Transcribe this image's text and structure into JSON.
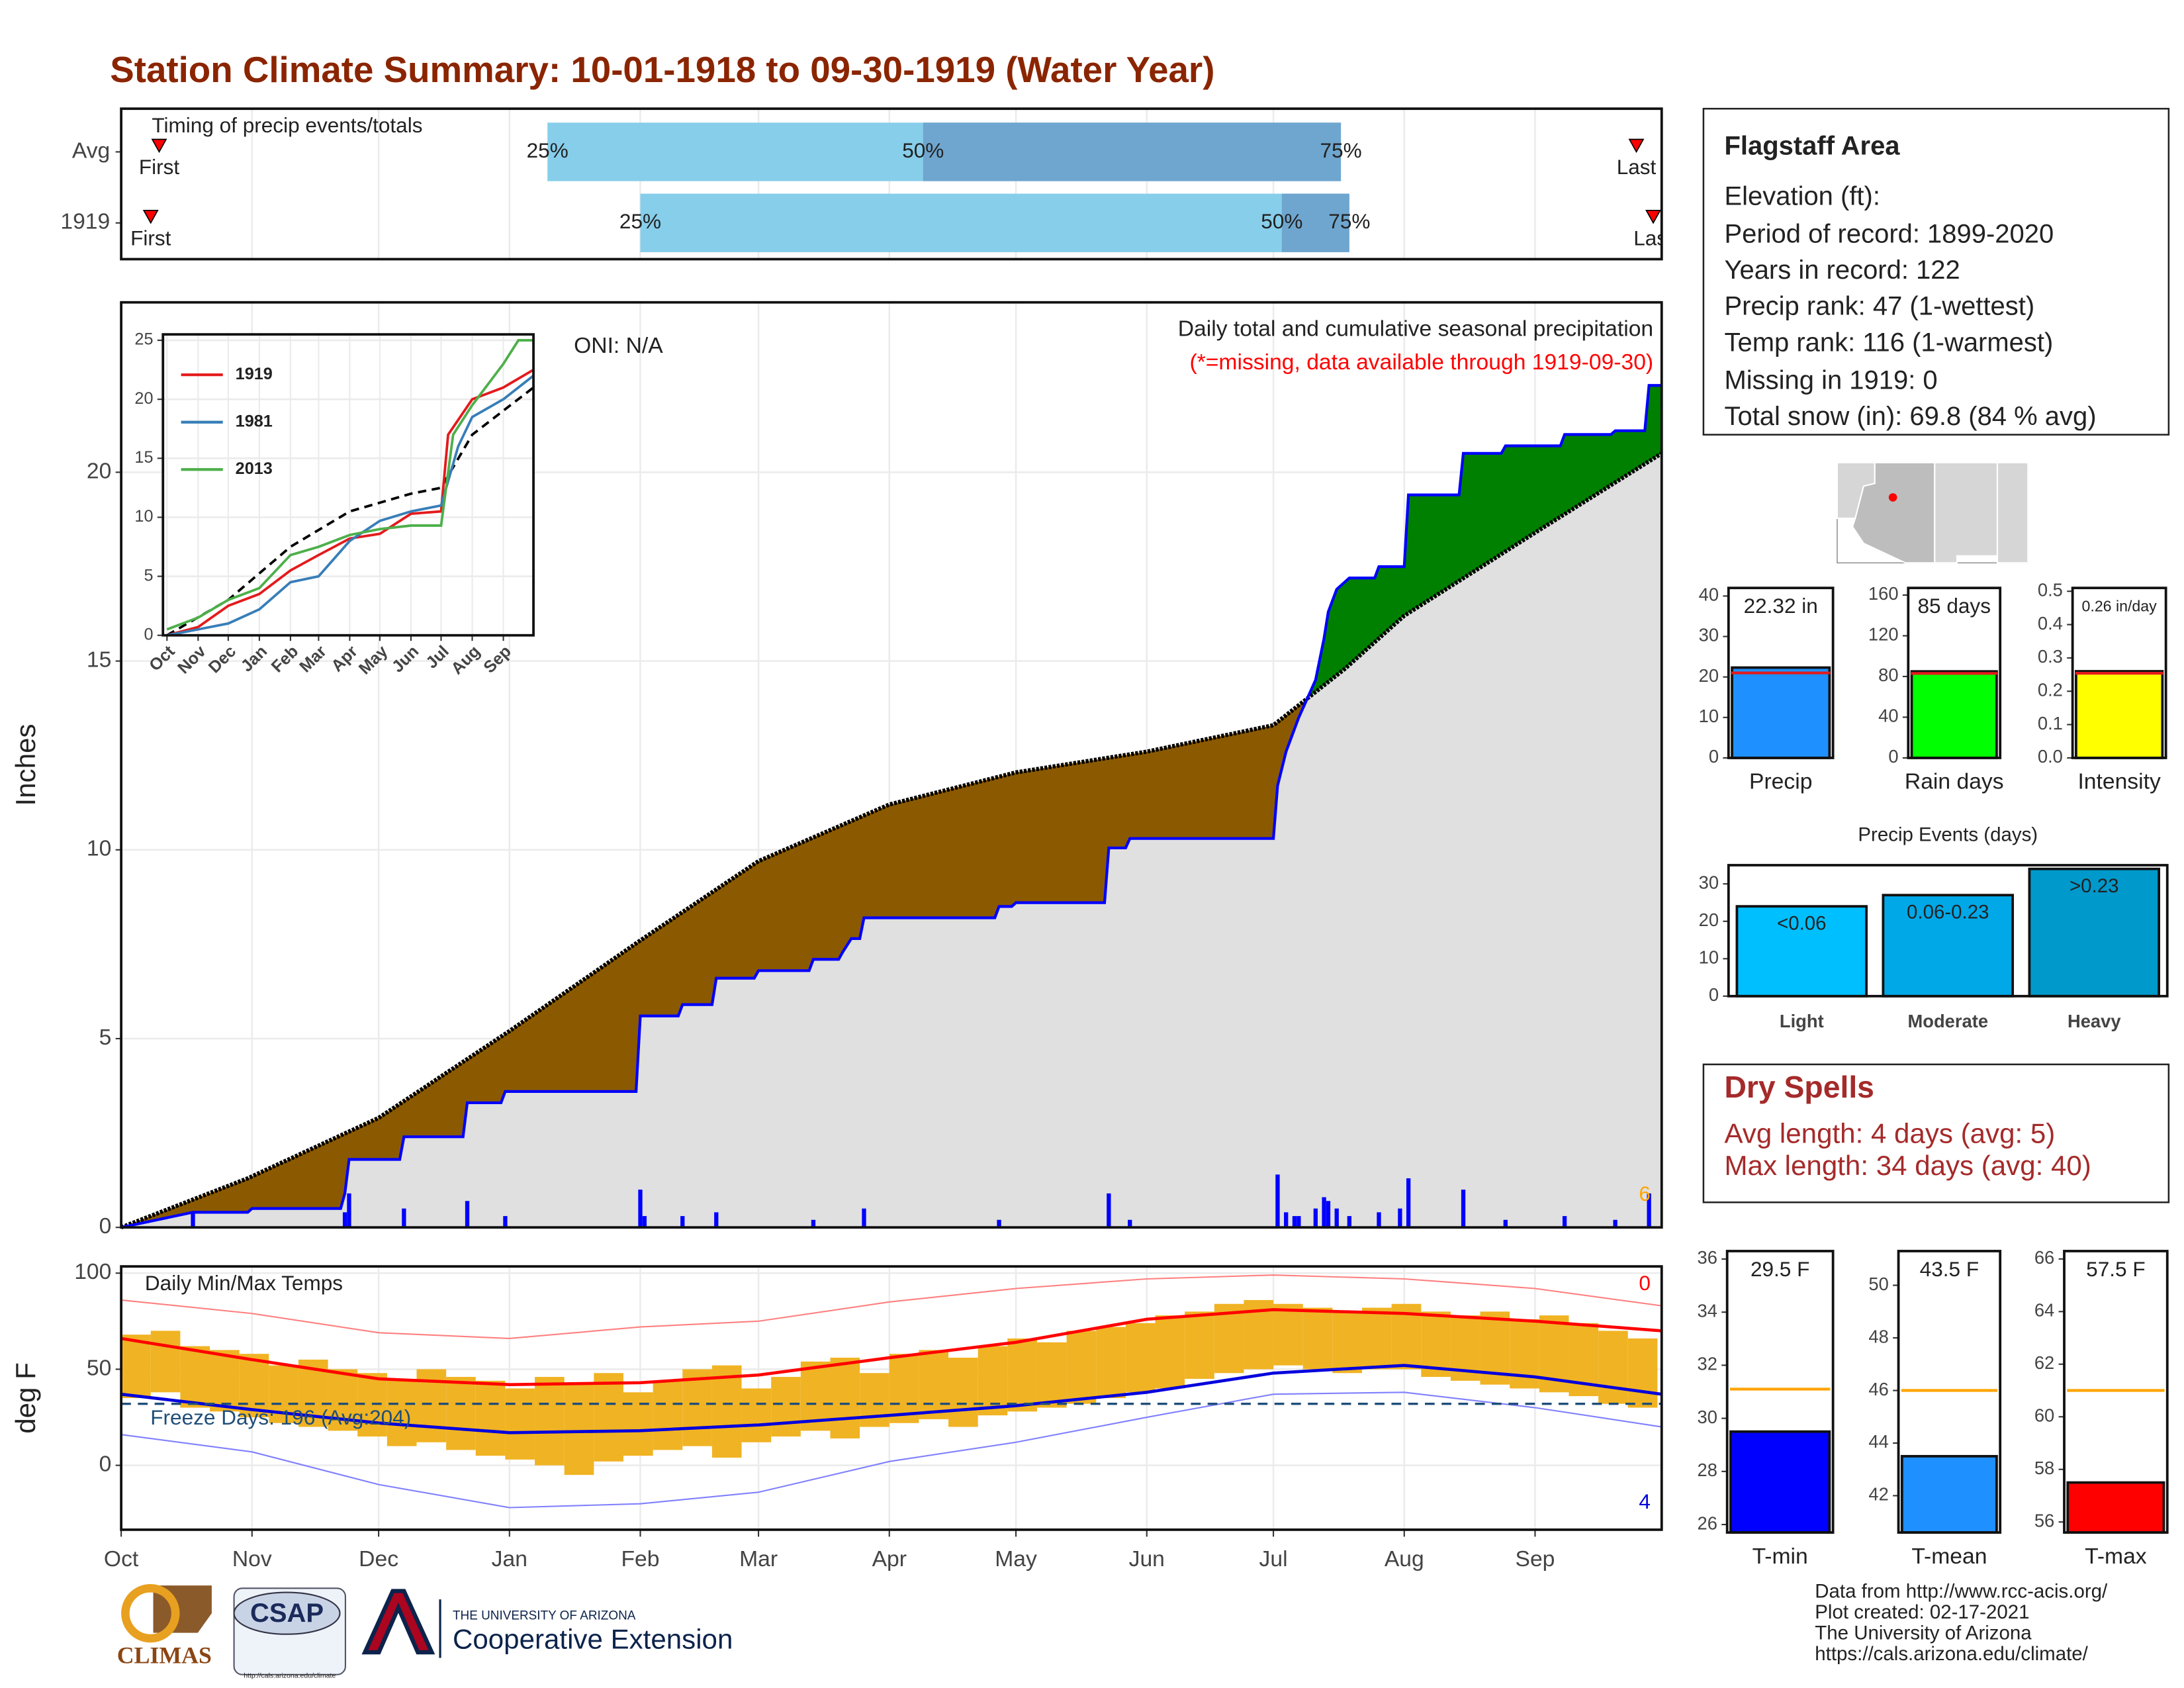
{
  "title": "Station Climate Summary: 10-01-1918 to 09-30-1919 (Water Year)",
  "info": {
    "station": "Flagstaff Area",
    "lines": [
      "Elevation (ft):",
      "Period of record: 1899-2020",
      "Years in record: 122",
      "Precip rank: 47 (1-wettest)",
      "Temp rank: 116 (1-warmest)",
      "Missing in 1919: 0",
      "Total snow (in): 69.8 (84 % avg)"
    ]
  },
  "dry_spells": {
    "title": "Dry Spells",
    "lines": [
      "Avg length: 4 days (avg: 5)",
      "Max length: 34 days (avg: 40)"
    ]
  },
  "credits": [
    "Data from http://www.rcc-acis.org/",
    "Plot created: 02-17-2021",
    "The University of Arizona",
    "https://cals.arizona.edu/climate/"
  ],
  "logos": {
    "climas": "CLIMAS",
    "csap": "CSAP",
    "csap_url": "http://cals.arizona.edu/climate",
    "university": "THE UNIVERSITY OF ARIZONA",
    "extension": "Cooperative Extension"
  },
  "chart_data": [
    {
      "type": "timing",
      "title": "Timing of precip events/totals",
      "categories": [
        "Avg",
        "1919"
      ],
      "xlim": [
        0,
        365
      ],
      "rows": [
        {
          "first": 9,
          "p25": 101,
          "p50": 190,
          "p75": 289,
          "last": 359
        },
        {
          "first": 7,
          "p25": 123,
          "p50": 275,
          "p75": 291,
          "last": 363
        }
      ],
      "marker_labels": {
        "first": "First",
        "p25": "25%",
        "p50": "50%",
        "p75": "75%",
        "last": "Last"
      },
      "light_color": "#87ceeb",
      "dark_color": "#6fa6cf",
      "marker_color": "#ff0000"
    },
    {
      "type": "area",
      "title": "Daily total and cumulative seasonal precipitation",
      "subtitle": "(*=missing, data available through 1919-09-30)",
      "annotation": "ONI: N/A",
      "ylabel": "Inches",
      "xlim": [
        0,
        365
      ],
      "ylim": [
        0,
        24.5
      ],
      "yticks": [
        0,
        5,
        10,
        15,
        20
      ],
      "grid": true,
      "cumulative": {
        "color": "#0000ff",
        "x": [
          0,
          17,
          30,
          31,
          52,
          53,
          54,
          66,
          67,
          81,
          82,
          90,
          91,
          122,
          123,
          132,
          133,
          140,
          141,
          150,
          151,
          163,
          164,
          170,
          171,
          173,
          175,
          176,
          207,
          208,
          211,
          212,
          233,
          234,
          238,
          239,
          273,
          274,
          276,
          279,
          283,
          285,
          286,
          288,
          291,
          297,
          298,
          304,
          305,
          317,
          318,
          327,
          328,
          341,
          342,
          353,
          354,
          361,
          362,
          365
        ],
        "values": [
          0,
          0.4,
          0.4,
          0.5,
          0.5,
          0.9,
          1.8,
          1.8,
          2.4,
          2.4,
          3.3,
          3.3,
          3.6,
          3.6,
          5.6,
          5.6,
          5.9,
          5.9,
          6.6,
          6.6,
          6.8,
          6.8,
          7.1,
          7.1,
          7.3,
          7.65,
          7.65,
          8.2,
          8.2,
          8.5,
          8.5,
          8.6,
          8.6,
          10.05,
          10.05,
          10.3,
          10.3,
          11.7,
          12.6,
          13.5,
          14.5,
          15.6,
          16.3,
          16.9,
          17.2,
          17.2,
          17.5,
          17.5,
          19.4,
          19.4,
          20.5,
          20.5,
          20.7,
          20.7,
          21.0,
          21.0,
          21.1,
          21.1,
          22.3,
          22.3
        ]
      },
      "average": {
        "color": "#000000",
        "x": [
          0,
          30,
          61,
          92,
          123,
          151,
          182,
          212,
          243,
          273,
          290,
          304,
          335,
          365
        ],
        "values": [
          0,
          1.3,
          2.9,
          5.2,
          7.6,
          9.7,
          11.2,
          12.05,
          12.6,
          13.3,
          14.8,
          16.2,
          18.4,
          20.5
        ]
      },
      "daily": {
        "color": "#0000ff",
        "x": [
          17,
          53,
          54,
          67,
          82,
          91,
          123,
          124,
          133,
          141,
          164,
          176,
          208,
          234,
          239,
          274,
          276,
          278,
          279,
          283,
          285,
          286,
          288,
          291,
          298,
          303,
          305,
          318,
          328,
          342,
          354,
          362
        ],
        "values": [
          0.4,
          0.4,
          0.9,
          0.5,
          0.7,
          0.3,
          1.0,
          0.3,
          0.3,
          0.4,
          0.2,
          0.5,
          0.2,
          0.9,
          0.2,
          1.4,
          0.4,
          0.3,
          0.3,
          0.5,
          0.8,
          0.7,
          0.5,
          0.3,
          0.4,
          0.5,
          1.3,
          1.0,
          0.2,
          0.3,
          0.2,
          0.9
        ]
      },
      "below_color": "#8b5a00",
      "above_color": "#008000",
      "fill_color": "#e0e0e0",
      "count_label": 6
    },
    {
      "type": "line",
      "xlim": [
        -4,
        365
      ],
      "ylim": [
        0,
        25.5
      ],
      "yticks": [
        0,
        5,
        10,
        15,
        20,
        25
      ],
      "xticks": [
        {
          "value": 0,
          "label": "Oct"
        },
        {
          "value": 31,
          "label": "Nov"
        },
        {
          "value": 61,
          "label": "Dec"
        },
        {
          "value": 92,
          "label": "Jan"
        },
        {
          "value": 123,
          "label": "Feb"
        },
        {
          "value": 151,
          "label": "Mar"
        },
        {
          "value": 182,
          "label": "Apr"
        },
        {
          "value": 212,
          "label": "May"
        },
        {
          "value": 243,
          "label": "Jun"
        },
        {
          "value": 273,
          "label": "Jul"
        },
        {
          "value": 304,
          "label": "Aug"
        },
        {
          "value": 335,
          "label": "Sep"
        }
      ],
      "series": [
        {
          "name": "1919",
          "color": "#e41a1c",
          "x": [
            0,
            31,
            61,
            92,
            123,
            151,
            182,
            212,
            243,
            273,
            280,
            304,
            335,
            365
          ],
          "values": [
            0,
            0.7,
            2.5,
            3.5,
            5.5,
            6.8,
            8.2,
            8.6,
            10.3,
            10.5,
            17,
            20,
            21,
            22.5
          ]
        },
        {
          "name": "1981",
          "color": "#377eb8",
          "x": [
            0,
            31,
            61,
            92,
            123,
            151,
            182,
            212,
            243,
            273,
            290,
            304,
            335,
            365
          ],
          "values": [
            0,
            0.5,
            1,
            2.2,
            4.5,
            5,
            8,
            9.7,
            10.5,
            11,
            16,
            18.5,
            20,
            22
          ]
        },
        {
          "name": "2013",
          "color": "#4daf4a",
          "x": [
            0,
            31,
            61,
            92,
            123,
            151,
            182,
            212,
            243,
            273,
            285,
            304,
            335,
            350,
            365
          ],
          "values": [
            0.5,
            1.5,
            3,
            4,
            6.8,
            7.5,
            8.5,
            9,
            9.3,
            9.3,
            17,
            19.5,
            23,
            25,
            25
          ]
        }
      ],
      "average": {
        "color": "#000000",
        "x": [
          0,
          61,
          123,
          182,
          243,
          273,
          304,
          365
        ],
        "values": [
          0,
          3,
          7.5,
          10.5,
          12,
          12.5,
          17,
          21
        ]
      }
    },
    {
      "type": "range",
      "title": "Daily Min/Max Temps",
      "ylabel": "deg F",
      "annotation": "Freeze Days: 196 (Avg:204)",
      "xlim": [
        0,
        365
      ],
      "ylim": [
        -33.5,
        103.5
      ],
      "yticks": [
        0,
        50,
        100
      ],
      "grid": true,
      "xticks": [
        {
          "value": 0,
          "label": "Oct"
        },
        {
          "value": 31,
          "label": "Nov"
        },
        {
          "value": 61,
          "label": "Dec"
        },
        {
          "value": 92,
          "label": "Jan"
        },
        {
          "value": 123,
          "label": "Feb"
        },
        {
          "value": 151,
          "label": "Mar"
        },
        {
          "value": 182,
          "label": "Apr"
        },
        {
          "value": 212,
          "label": "May"
        },
        {
          "value": 243,
          "label": "Jun"
        },
        {
          "value": 273,
          "label": "Jul"
        },
        {
          "value": 304,
          "label": "Aug"
        },
        {
          "value": 335,
          "label": "Sep"
        }
      ],
      "x": [
        3.5,
        10.5,
        17.5,
        24.5,
        31.5,
        38.5,
        45.5,
        52.5,
        59.5,
        66.5,
        73.5,
        80.5,
        87.5,
        94.5,
        101.5,
        108.5,
        115.5,
        122.5,
        129.5,
        136.5,
        143.5,
        150.5,
        157.5,
        164.5,
        171.5,
        178.5,
        185.5,
        192.5,
        199.5,
        206.5,
        213.5,
        220.5,
        227.5,
        234.5,
        241.5,
        248.5,
        255.5,
        262.5,
        269.5,
        276.5,
        283.5,
        290.5,
        297.5,
        304.5,
        311.5,
        318.5,
        325.5,
        332.5,
        339.5,
        346.5,
        353.5,
        360.5
      ],
      "high": [
        68,
        70,
        62,
        60,
        58,
        52,
        55,
        50,
        48,
        45,
        50,
        46,
        44,
        40,
        46,
        42,
        48,
        38,
        44,
        50,
        52,
        40,
        46,
        54,
        56,
        48,
        58,
        60,
        56,
        62,
        66,
        64,
        70,
        72,
        74,
        78,
        80,
        84,
        86,
        84,
        82,
        80,
        82,
        84,
        80,
        78,
        80,
        76,
        78,
        74,
        70,
        66
      ],
      "low": [
        35,
        38,
        30,
        28,
        25,
        22,
        20,
        18,
        15,
        10,
        12,
        8,
        5,
        3,
        0,
        -5,
        2,
        5,
        8,
        10,
        4,
        12,
        15,
        18,
        14,
        20,
        22,
        24,
        20,
        26,
        28,
        30,
        32,
        35,
        38,
        40,
        45,
        48,
        50,
        52,
        50,
        48,
        50,
        50,
        46,
        44,
        42,
        40,
        38,
        36,
        32,
        30
      ],
      "range_color": "#f0b323",
      "line_x": [
        0,
        31,
        61,
        92,
        123,
        151,
        182,
        212,
        243,
        273,
        304,
        335,
        365
      ],
      "normal_high": {
        "color": "#ff0000",
        "values": [
          66,
          55,
          45,
          42,
          43,
          47,
          56,
          64,
          76,
          81,
          79,
          75,
          70
        ]
      },
      "normal_low": {
        "color": "#0000dd",
        "values": [
          37,
          29,
          22,
          17,
          18,
          21,
          26,
          31,
          38,
          48,
          52,
          46,
          37
        ]
      },
      "record_high": {
        "color": "#ff8080",
        "values": [
          86,
          79,
          69,
          66,
          72,
          75,
          85,
          92,
          97,
          99,
          97,
          92,
          83
        ]
      },
      "record_low": {
        "color": "#8080ff",
        "values": [
          16,
          7,
          -10,
          -22,
          -20,
          -14,
          2,
          12,
          25,
          37,
          38,
          30,
          20
        ]
      },
      "freeze_line": 32,
      "freeze_color": "#1f4e79",
      "count_high": 0,
      "count_low": 4
    },
    {
      "type": "bar",
      "categories": [
        "Precip"
      ],
      "values": [
        22.32
      ],
      "value_labels": [
        "22.32 in"
      ],
      "color": "#1e90ff",
      "ylim": [
        0,
        42
      ],
      "yticks": [
        0,
        10,
        20,
        30,
        40
      ],
      "reference": 21,
      "reference_color": "#e41a1c"
    },
    {
      "type": "bar",
      "categories": [
        "Rain days"
      ],
      "values": [
        85
      ],
      "value_labels": [
        "85 days"
      ],
      "color": "#00ff00",
      "ylim": [
        0,
        167
      ],
      "yticks": [
        0,
        40,
        80,
        120,
        160
      ],
      "reference": 83,
      "reference_color": "#e41a1c"
    },
    {
      "type": "bar",
      "categories": [
        "Intensity"
      ],
      "values": [
        0.26
      ],
      "value_labels": [
        "0.26 in/day"
      ],
      "color": "#ffff00",
      "ylim": [
        0,
        0.51
      ],
      "yticks": [
        {
          "value": 0,
          "label": "0.0"
        },
        0.1,
        0.2,
        0.3,
        0.4,
        0.5
      ],
      "reference": 0.254,
      "reference_color": "#e41a1c"
    },
    {
      "type": "bar",
      "title": "Precip Events (days)",
      "categories": [
        "Light",
        "Moderate",
        "Heavy"
      ],
      "values": [
        24,
        27,
        34
      ],
      "bin_labels": [
        "<0.06",
        "0.06-0.23",
        ">0.23"
      ],
      "colors": [
        "#00bfff",
        "#00a8e8",
        "#0099cc"
      ],
      "ylim": [
        0,
        35
      ],
      "yticks": [
        0,
        10,
        20,
        30
      ]
    },
    {
      "type": "bar",
      "categories": [
        "T-min"
      ],
      "values": [
        29.5
      ],
      "value_labels": [
        "29.5 F"
      ],
      "color": "#0000ff",
      "ylim": [
        25.7,
        36.3
      ],
      "yticks": [
        26,
        28,
        30,
        32,
        34,
        36
      ],
      "reference": 31.1,
      "reference_color": "#ffa500"
    },
    {
      "type": "bar",
      "categories": [
        "T-mean"
      ],
      "values": [
        43.5
      ],
      "value_labels": [
        "43.5 F"
      ],
      "color": "#1e90ff",
      "ylim": [
        40.6,
        51.3
      ],
      "yticks": [
        42,
        44,
        46,
        48,
        50
      ],
      "reference": 46,
      "reference_color": "#ffa500"
    },
    {
      "type": "bar",
      "categories": [
        "T-max"
      ],
      "values": [
        57.5
      ],
      "value_labels": [
        "57.5 F"
      ],
      "color": "#ff0000",
      "ylim": [
        55.6,
        66.3
      ],
      "yticks": [
        56,
        58,
        60,
        62,
        64,
        66
      ],
      "reference": 61,
      "reference_color": "#ffa500"
    }
  ]
}
